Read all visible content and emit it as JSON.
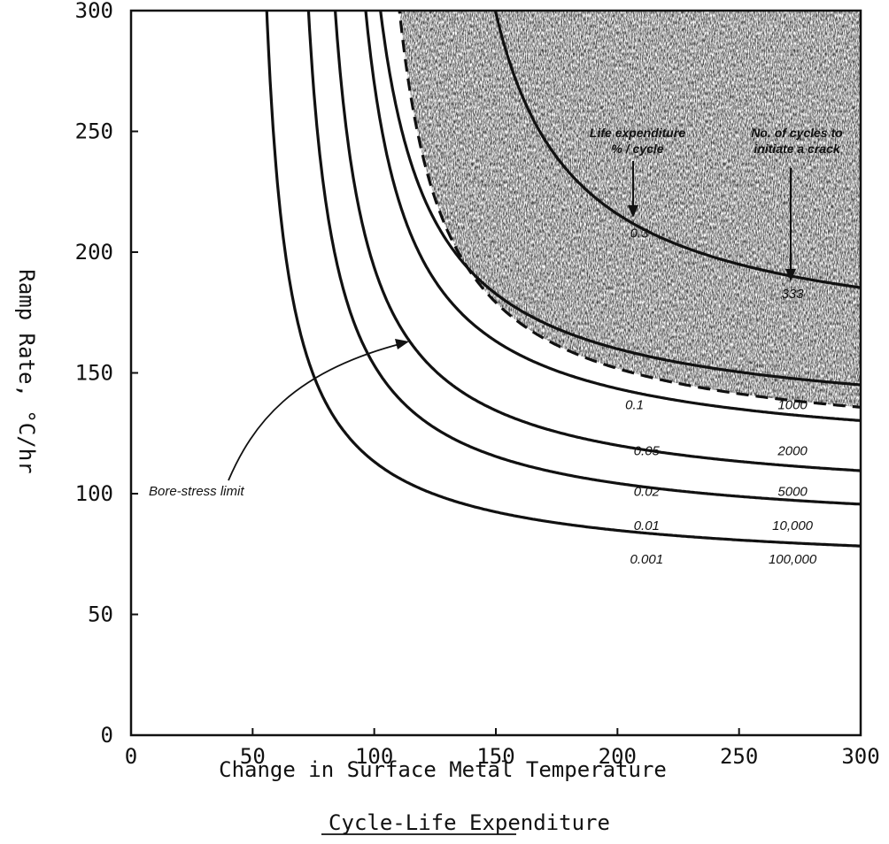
{
  "chart_data": {
    "type": "line",
    "title": "Cycle-Life Expenditure",
    "xlabel": "Change in Surface Metal Temperature",
    "ylabel": "Ramp Rate, °C/hr",
    "xlim": [
      0,
      300
    ],
    "ylim": [
      0,
      300
    ],
    "x_ticks": [
      "0",
      "50",
      "100",
      "150",
      "200",
      "250",
      "300"
    ],
    "y_ticks": [
      "0",
      "50",
      "100",
      "150",
      "200",
      "250",
      "300"
    ],
    "grid": false,
    "shaded_region": "above bore-stress limit",
    "column_headers": {
      "life_expenditure": [
        "Life expenditure",
        "% / cycle"
      ],
      "cycles_to_crack": [
        "No. of cycles to",
        "initiate a crack"
      ]
    },
    "series": [
      {
        "life_pct": "0.001",
        "cycles": "100,000",
        "asymptote_x": 47,
        "asymptote_y": 67
      },
      {
        "life_pct": "0.01",
        "cycles": "10,000",
        "asymptote_x": 62,
        "asymptote_y": 82
      },
      {
        "life_pct": "0.02",
        "cycles": "5000",
        "asymptote_x": 71,
        "asymptote_y": 94
      },
      {
        "life_pct": "0.05",
        "cycles": "2000",
        "asymptote_x": 80,
        "asymptote_y": 112
      },
      {
        "life_pct": "0.1",
        "cycles": "1000",
        "asymptote_x": 83,
        "asymptote_y": 125
      },
      {
        "life_pct": "0.3",
        "cycles": "333",
        "asymptote_x": 120,
        "asymptote_y": 157
      }
    ],
    "bore_stress_limit": {
      "label": "Bore-stress limit",
      "asymptote_x": 93,
      "asymptote_y": 116
    }
  }
}
